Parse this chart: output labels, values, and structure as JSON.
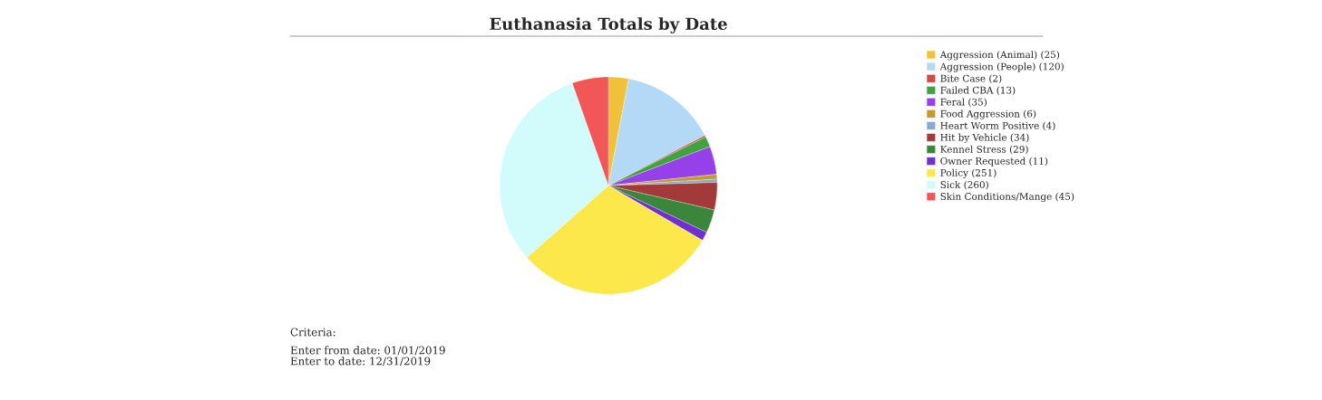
{
  "chart_data": {
    "type": "pie",
    "title": "Euthanasia Totals by Date",
    "categories": [
      "Aggression (Animal) (25)",
      "Aggression (People) (120)",
      "Bite Case (2)",
      "Failed CBA (13)",
      "Feral (35)",
      "Food Aggression (6)",
      "Heart Worm Positive (4)",
      "Hit by Vehicle (34)",
      "Kennel Stress (29)",
      "Owner Requested (11)",
      "Policy (251)",
      "Sick (260)",
      "Skin Conditions/Mange (45)"
    ],
    "values": [
      25,
      120,
      2,
      13,
      35,
      6,
      4,
      34,
      29,
      11,
      251,
      260,
      45
    ],
    "colors": [
      "#f0c23c",
      "#b3d9f7",
      "#d24a44",
      "#3fa33f",
      "#9540e8",
      "#c39a2e",
      "#86a9cf",
      "#a33a3a",
      "#3a863a",
      "#7030d0",
      "#fde84c",
      "#d2fcfc",
      "#f25757"
    ],
    "legend": "right",
    "annotations": [
      "Criteria:",
      "Enter from date: 01/01/2019",
      "Enter to date: 12/31/2019"
    ]
  }
}
